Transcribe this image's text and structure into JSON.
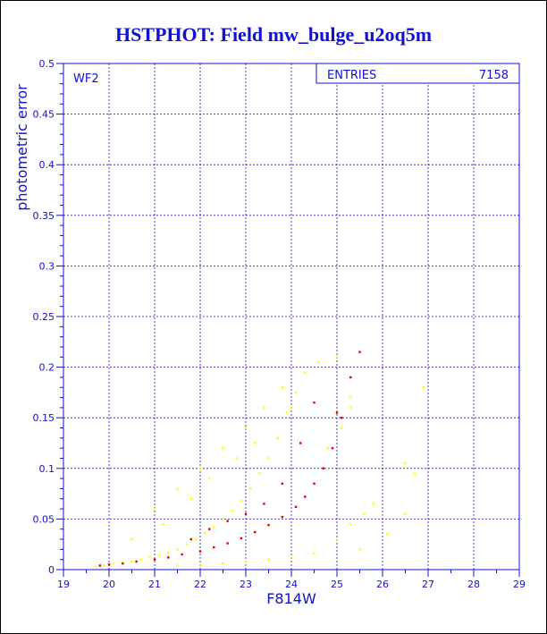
{
  "title": "HSTPHOT: Field mw_bulge_u2oq5m",
  "chart_data": {
    "type": "scatter",
    "panel_label": "WF2",
    "stats_box": {
      "label": "ENTRIES",
      "value": "7158"
    },
    "xlabel": "F814W",
    "ylabel": "photometric error",
    "xlim": [
      19,
      29
    ],
    "ylim": [
      0,
      0.5
    ],
    "xticks": [
      "19",
      "20",
      "21",
      "22",
      "23",
      "24",
      "25",
      "26",
      "27",
      "28",
      "29"
    ],
    "yticks": [
      "0",
      "0.05",
      "0.1",
      "0.15",
      "0.2",
      "0.25",
      "0.3",
      "0.35",
      "0.4",
      "0.45",
      "0.5"
    ],
    "grid": true,
    "colors": {
      "axis": "#1010d0",
      "grid": "#1010d0",
      "points_yellow": "#ffff00",
      "points_red": "#e00000"
    },
    "series": [
      {
        "color": "yellow",
        "values": [
          [
            19.7,
            0.003
          ],
          [
            19.9,
            0.004
          ],
          [
            20.1,
            0.006
          ],
          [
            20.3,
            0.007
          ],
          [
            20.5,
            0.008
          ],
          [
            20.7,
            0.01
          ],
          [
            20.9,
            0.012
          ],
          [
            21.1,
            0.014
          ],
          [
            21.3,
            0.017
          ],
          [
            21.5,
            0.02
          ],
          [
            21.7,
            0.025
          ],
          [
            21.9,
            0.03
          ],
          [
            22.1,
            0.036
          ],
          [
            22.3,
            0.042
          ],
          [
            22.5,
            0.05
          ],
          [
            22.7,
            0.058
          ],
          [
            22.9,
            0.068
          ],
          [
            23.1,
            0.08
          ],
          [
            23.3,
            0.095
          ],
          [
            23.5,
            0.11
          ],
          [
            23.7,
            0.13
          ],
          [
            23.9,
            0.155
          ],
          [
            24.1,
            0.175
          ],
          [
            24.3,
            0.195
          ],
          [
            24.6,
            0.205
          ],
          [
            25.0,
            0.21
          ],
          [
            25.3,
            0.17
          ],
          [
            21.0,
            0.06
          ],
          [
            21.5,
            0.08
          ],
          [
            22.0,
            0.1
          ],
          [
            22.5,
            0.12
          ],
          [
            23.0,
            0.14
          ],
          [
            23.4,
            0.16
          ],
          [
            23.8,
            0.18
          ],
          [
            20.5,
            0.03
          ],
          [
            21.2,
            0.045
          ],
          [
            21.8,
            0.07
          ],
          [
            22.2,
            0.09
          ],
          [
            22.8,
            0.11
          ],
          [
            23.2,
            0.125
          ],
          [
            24.0,
            0.16
          ],
          [
            21.5,
            0.004
          ],
          [
            22.0,
            0.005
          ],
          [
            22.5,
            0.006
          ],
          [
            23.0,
            0.008
          ],
          [
            23.5,
            0.01
          ],
          [
            24.0,
            0.012
          ],
          [
            24.5,
            0.016
          ],
          [
            25.0,
            0.03
          ],
          [
            25.3,
            0.045
          ],
          [
            25.6,
            0.055
          ],
          [
            25.8,
            0.065
          ],
          [
            26.1,
            0.035
          ],
          [
            26.5,
            0.055
          ],
          [
            26.7,
            0.095
          ],
          [
            26.9,
            0.18
          ],
          [
            26.5,
            0.105
          ],
          [
            25.5,
            0.02
          ],
          [
            24.8,
            0.12
          ],
          [
            25.1,
            0.14
          ],
          [
            25.3,
            0.16
          ]
        ]
      },
      {
        "color": "red",
        "values": [
          [
            19.8,
            0.004
          ],
          [
            20.0,
            0.005
          ],
          [
            20.3,
            0.006
          ],
          [
            20.6,
            0.008
          ],
          [
            21.0,
            0.01
          ],
          [
            21.3,
            0.012
          ],
          [
            21.6,
            0.015
          ],
          [
            22.0,
            0.018
          ],
          [
            22.3,
            0.022
          ],
          [
            22.6,
            0.026
          ],
          [
            22.9,
            0.031
          ],
          [
            23.2,
            0.037
          ],
          [
            23.5,
            0.044
          ],
          [
            23.8,
            0.052
          ],
          [
            24.1,
            0.062
          ],
          [
            24.3,
            0.072
          ],
          [
            24.5,
            0.085
          ],
          [
            24.7,
            0.1
          ],
          [
            24.9,
            0.12
          ],
          [
            25.1,
            0.15
          ],
          [
            25.3,
            0.19
          ],
          [
            25.5,
            0.215
          ],
          [
            21.8,
            0.03
          ],
          [
            22.2,
            0.04
          ],
          [
            22.6,
            0.048
          ],
          [
            23.0,
            0.055
          ],
          [
            23.4,
            0.065
          ],
          [
            23.8,
            0.085
          ],
          [
            24.2,
            0.125
          ],
          [
            24.5,
            0.165
          ],
          [
            25.0,
            0.155
          ]
        ]
      }
    ]
  }
}
